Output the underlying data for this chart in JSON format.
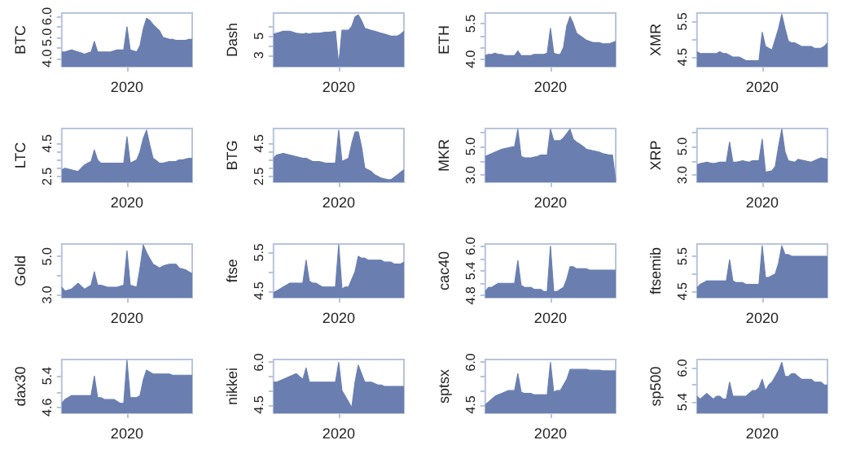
{
  "chart_data": [
    {
      "type": "area",
      "ylabel": "BTC",
      "color": "#6a7fb0",
      "categories": [
        null,
        null,
        null,
        null,
        null,
        null,
        null,
        null,
        null,
        null,
        null,
        null,
        null,
        null,
        null,
        null,
        null,
        null,
        null,
        null,
        "2020",
        null,
        null,
        null,
        null,
        null,
        null,
        null,
        null,
        null,
        null,
        null,
        null,
        null,
        null,
        null,
        null,
        null,
        null,
        null,
        null
      ],
      "ylim": [
        3.6,
        6.15
      ],
      "yticks": [
        {
          "value": 4.0,
          "label": "4.0"
        },
        {
          "value": 4.5,
          "label": null
        },
        {
          "value": 5.0,
          "label": "5.0"
        },
        {
          "value": 5.5,
          "label": null
        },
        {
          "value": 6.0,
          "label": "6.0"
        }
      ],
      "values": [
        4.3,
        4.3,
        4.35,
        4.4,
        4.35,
        4.3,
        4.25,
        4.2,
        4.25,
        4.3,
        4.8,
        4.3,
        4.3,
        4.3,
        4.3,
        4.3,
        4.35,
        4.4,
        4.4,
        4.4,
        5.5,
        4.4,
        4.35,
        4.3,
        4.6,
        5.4,
        5.9,
        5.8,
        5.6,
        5.45,
        5.3,
        5.0,
        4.95,
        4.9,
        4.9,
        4.85,
        4.85,
        4.85,
        4.85,
        4.9,
        4.9
      ]
    },
    {
      "type": "area",
      "ylabel": "Dash",
      "color": "#6a7fb0",
      "categories": [
        null,
        null,
        null,
        null,
        null,
        null,
        null,
        null,
        null,
        null,
        null,
        null,
        null,
        null,
        null,
        null,
        null,
        null,
        null,
        null,
        "2020",
        null,
        null,
        null,
        null,
        null,
        null,
        null,
        null,
        null,
        null,
        null,
        null,
        null,
        null,
        null,
        null,
        null,
        null,
        null,
        null
      ],
      "ylim": [
        1.8,
        7.4
      ],
      "yticks": [
        {
          "value": 3,
          "label": "3"
        },
        {
          "value": 4,
          "label": null
        },
        {
          "value": 5,
          "label": "5"
        },
        {
          "value": 6,
          "label": null
        }
      ],
      "values": [
        5.2,
        5.3,
        5.4,
        5.5,
        5.5,
        5.5,
        5.4,
        5.3,
        5.25,
        5.2,
        5.3,
        5.2,
        5.3,
        5.3,
        5.3,
        5.35,
        5.4,
        5.4,
        5.45,
        5.5,
        2.0,
        5.6,
        5.6,
        5.6,
        6.0,
        7.0,
        7.2,
        6.6,
        5.8,
        5.7,
        5.6,
        5.5,
        5.4,
        5.3,
        5.2,
        5.1,
        5.0,
        5.0,
        5.0,
        5.2,
        5.5
      ]
    },
    {
      "type": "area",
      "ylabel": "ETH",
      "color": "#6a7fb0",
      "categories": [
        null,
        null,
        null,
        null,
        null,
        null,
        null,
        null,
        null,
        null,
        null,
        null,
        null,
        null,
        null,
        null,
        null,
        null,
        null,
        null,
        "2020",
        null,
        null,
        null,
        null,
        null,
        null,
        null,
        null,
        null,
        null,
        null,
        null,
        null,
        null,
        null,
        null,
        null,
        null,
        null,
        null
      ],
      "ylim": [
        3.68,
        5.95
      ],
      "yticks": [
        {
          "value": 4.0,
          "label": "4.0"
        },
        {
          "value": 4.5,
          "label": null
        },
        {
          "value": 5.0,
          "label": null
        },
        {
          "value": 5.5,
          "label": "5.5"
        }
      ],
      "values": [
        4.15,
        4.2,
        4.2,
        4.25,
        4.2,
        4.2,
        4.15,
        4.15,
        4.15,
        4.15,
        4.35,
        4.15,
        4.15,
        4.15,
        4.15,
        4.2,
        4.2,
        4.2,
        4.2,
        4.25,
        5.3,
        4.25,
        4.2,
        4.2,
        4.5,
        5.4,
        5.8,
        5.5,
        5.1,
        5.0,
        4.9,
        4.8,
        4.75,
        4.7,
        4.7,
        4.7,
        4.65,
        4.65,
        4.65,
        4.7,
        4.75
      ]
    },
    {
      "type": "area",
      "ylabel": "XMR",
      "color": "#6a7fb0",
      "categories": [
        null,
        null,
        null,
        null,
        null,
        null,
        null,
        null,
        null,
        null,
        null,
        null,
        null,
        null,
        null,
        null,
        null,
        null,
        null,
        null,
        "2020",
        null,
        null,
        null,
        null,
        null,
        null,
        null,
        null,
        null,
        null,
        null,
        null,
        null,
        null,
        null,
        null,
        null,
        null,
        null,
        null
      ],
      "ylim": [
        4.23,
        5.74
      ],
      "yticks": [
        {
          "value": 4.5,
          "label": "4.5"
        },
        {
          "value": 5.0,
          "label": null
        },
        {
          "value": 5.5,
          "label": "5.5"
        }
      ],
      "values": [
        4.65,
        4.6,
        4.6,
        4.6,
        4.6,
        4.6,
        4.6,
        4.65,
        4.6,
        4.6,
        4.55,
        4.5,
        4.5,
        4.5,
        4.45,
        4.4,
        4.4,
        4.4,
        4.4,
        4.4,
        5.2,
        4.8,
        4.75,
        4.7,
        5.0,
        5.3,
        5.7,
        5.3,
        4.95,
        4.9,
        4.9,
        4.85,
        4.8,
        4.8,
        4.8,
        4.8,
        4.75,
        4.75,
        4.75,
        4.8,
        4.9
      ]
    },
    {
      "type": "area",
      "ylabel": "LTC",
      "color": "#6a7fb0",
      "categories": [
        null,
        null,
        null,
        null,
        null,
        null,
        null,
        null,
        null,
        null,
        null,
        null,
        null,
        null,
        null,
        null,
        null,
        null,
        null,
        null,
        "2020",
        null,
        null,
        null,
        null,
        null,
        null,
        null,
        null,
        null,
        null,
        null,
        null,
        null,
        null,
        null,
        null,
        null,
        null,
        null,
        null
      ],
      "ylim": [
        2.15,
        5.4
      ],
      "yticks": [
        {
          "value": 2.5,
          "label": "2.5"
        },
        {
          "value": 3.0,
          "label": null
        },
        {
          "value": 3.5,
          "label": null
        },
        {
          "value": 4.0,
          "label": null
        },
        {
          "value": 4.5,
          "label": "4.5"
        }
      ],
      "values": [
        2.9,
        3.0,
        2.95,
        2.9,
        2.85,
        2.8,
        3.0,
        3.2,
        3.3,
        3.4,
        4.1,
        3.5,
        3.3,
        3.3,
        3.3,
        3.3,
        3.3,
        3.3,
        3.3,
        3.3,
        4.9,
        3.3,
        3.4,
        3.5,
        4.0,
        4.8,
        5.3,
        4.4,
        3.6,
        3.45,
        3.3,
        3.3,
        3.35,
        3.4,
        3.4,
        3.4,
        3.5,
        3.5,
        3.55,
        3.6,
        3.6
      ]
    },
    {
      "type": "area",
      "ylabel": "BTG",
      "color": "#6a7fb0",
      "categories": [
        null,
        null,
        null,
        null,
        null,
        null,
        null,
        null,
        null,
        null,
        null,
        null,
        null,
        null,
        null,
        null,
        null,
        null,
        null,
        null,
        "2020",
        null,
        null,
        null,
        null,
        null,
        null,
        null,
        null,
        null,
        null,
        null,
        null,
        null,
        null,
        null,
        null,
        null,
        null,
        null,
        null
      ],
      "ylim": [
        2.15,
        5.4
      ],
      "yticks": [
        {
          "value": 2.5,
          "label": "2.5"
        },
        {
          "value": 3.0,
          "label": null
        },
        {
          "value": 3.5,
          "label": null
        },
        {
          "value": 4.0,
          "label": null
        },
        {
          "value": 4.5,
          "label": "4.5"
        }
      ],
      "values": [
        3.6,
        3.8,
        3.85,
        3.9,
        3.85,
        3.8,
        3.75,
        3.7,
        3.65,
        3.6,
        3.6,
        3.5,
        3.4,
        3.4,
        3.4,
        3.35,
        3.3,
        3.3,
        3.3,
        3.3,
        5.3,
        3.4,
        3.5,
        3.6,
        4.5,
        5.2,
        5.2,
        4.3,
        3.0,
        2.9,
        2.8,
        2.6,
        2.5,
        2.4,
        2.35,
        2.3,
        2.3,
        2.45,
        2.6,
        2.75,
        2.9
      ]
    },
    {
      "type": "area",
      "ylabel": "MKR",
      "color": "#6a7fb0",
      "categories": [
        null,
        null,
        null,
        null,
        null,
        null,
        null,
        null,
        null,
        null,
        null,
        null,
        null,
        null,
        null,
        null,
        null,
        null,
        null,
        null,
        "2020",
        null,
        null,
        null,
        null,
        null,
        null,
        null,
        null,
        null,
        null,
        null,
        null,
        null,
        null,
        null,
        null,
        null,
        null,
        null,
        null
      ],
      "ylim": [
        2.5,
        6.25
      ],
      "yticks": [
        {
          "value": 3.0,
          "label": "3.0"
        },
        {
          "value": 4.0,
          "label": null
        },
        {
          "value": 5.0,
          "label": "5.0"
        },
        {
          "value": 6.0,
          "label": null
        }
      ],
      "values": [
        4.3,
        4.4,
        4.5,
        4.6,
        4.7,
        4.8,
        4.85,
        4.9,
        4.95,
        5.0,
        6.2,
        4.3,
        4.2,
        4.2,
        4.2,
        4.25,
        4.3,
        4.4,
        4.4,
        4.4,
        6.2,
        5.4,
        5.4,
        5.4,
        5.6,
        5.9,
        6.2,
        5.5,
        5.3,
        5.15,
        5.0,
        4.8,
        4.75,
        4.7,
        4.65,
        4.6,
        4.5,
        4.45,
        4.4,
        4.4,
        2.6
      ]
    },
    {
      "type": "area",
      "ylabel": "XRP",
      "color": "#6a7fb0",
      "categories": [
        null,
        null,
        null,
        null,
        null,
        null,
        null,
        null,
        null,
        null,
        null,
        null,
        null,
        null,
        null,
        null,
        null,
        null,
        null,
        null,
        "2020",
        null,
        null,
        null,
        null,
        null,
        null,
        null,
        null,
        null,
        null,
        null,
        null,
        null,
        null,
        null,
        null,
        null,
        null,
        null,
        null
      ],
      "ylim": [
        2.5,
        6.25
      ],
      "yticks": [
        {
          "value": 3.0,
          "label": "3.0"
        },
        {
          "value": 4.0,
          "label": null
        },
        {
          "value": 5.0,
          "label": "5.0"
        },
        {
          "value": 6.0,
          "label": null
        }
      ],
      "values": [
        3.7,
        3.8,
        3.85,
        3.9,
        3.85,
        3.8,
        3.85,
        3.9,
        3.9,
        3.9,
        5.3,
        3.9,
        3.9,
        3.95,
        4.0,
        3.95,
        3.9,
        4.0,
        4.0,
        4.0,
        5.5,
        3.2,
        3.25,
        3.3,
        3.6,
        5.0,
        6.2,
        4.6,
        4.0,
        3.95,
        3.9,
        4.1,
        4.05,
        4.0,
        3.95,
        3.9,
        4.0,
        4.1,
        4.2,
        4.15,
        4.1
      ]
    },
    {
      "type": "area",
      "ylabel": "Gold",
      "color": "#6a7fb0",
      "categories": [
        null,
        null,
        null,
        null,
        null,
        null,
        null,
        null,
        null,
        null,
        null,
        null,
        null,
        null,
        null,
        null,
        null,
        null,
        null,
        null,
        "2020",
        null,
        null,
        null,
        null,
        null,
        null,
        null,
        null,
        null,
        null,
        null,
        null,
        null,
        null,
        null,
        null,
        null,
        null,
        null,
        null
      ],
      "ylim": [
        2.85,
        5.65
      ],
      "yticks": [
        {
          "value": 3.0,
          "label": "3.0"
        },
        {
          "value": 4.0,
          "label": null
        },
        {
          "value": 5.0,
          "label": "5.0"
        }
      ],
      "values": [
        3.4,
        3.2,
        3.25,
        3.3,
        3.45,
        3.6,
        3.45,
        3.3,
        3.4,
        3.5,
        4.2,
        3.5,
        3.5,
        3.45,
        3.4,
        3.4,
        3.4,
        3.4,
        3.45,
        3.5,
        5.3,
        3.5,
        3.45,
        3.4,
        4.4,
        5.6,
        5.2,
        4.9,
        4.6,
        4.5,
        4.4,
        4.5,
        4.55,
        4.6,
        4.6,
        4.6,
        4.4,
        4.35,
        4.3,
        4.2,
        4.1
      ]
    },
    {
      "type": "area",
      "ylabel": "ftse",
      "color": "#6a7fb0",
      "categories": [
        null,
        null,
        null,
        null,
        null,
        null,
        null,
        null,
        null,
        null,
        null,
        null,
        null,
        null,
        null,
        null,
        null,
        null,
        null,
        null,
        "2020",
        null,
        null,
        null,
        null,
        null,
        null,
        null,
        null,
        null,
        null,
        null,
        null,
        null,
        null,
        null,
        null,
        null,
        null,
        null,
        null
      ],
      "ylim": [
        4.32,
        5.72
      ],
      "yticks": [
        {
          "value": 4.5,
          "label": "4.5"
        },
        {
          "value": 5.0,
          "label": null
        },
        {
          "value": 5.5,
          "label": "5.5"
        }
      ],
      "values": [
        4.45,
        4.5,
        4.55,
        4.6,
        4.65,
        4.7,
        4.7,
        4.7,
        4.7,
        4.7,
        5.3,
        4.75,
        4.7,
        4.7,
        4.65,
        4.6,
        4.6,
        4.6,
        4.6,
        4.6,
        5.7,
        4.55,
        4.6,
        4.6,
        4.8,
        5.0,
        5.4,
        5.35,
        5.35,
        5.3,
        5.3,
        5.3,
        5.3,
        5.3,
        5.25,
        5.25,
        5.25,
        5.2,
        5.2,
        5.2,
        5.25
      ]
    },
    {
      "type": "area",
      "ylabel": "cac40",
      "color": "#6a7fb0",
      "categories": [
        null,
        null,
        null,
        null,
        null,
        null,
        null,
        null,
        null,
        null,
        null,
        null,
        null,
        null,
        null,
        null,
        null,
        null,
        null,
        null,
        "2020",
        null,
        null,
        null,
        null,
        null,
        null,
        null,
        null,
        null,
        null,
        null,
        null,
        null,
        null,
        null,
        null,
        null,
        null,
        null,
        null
      ],
      "ylim": [
        4.75,
        6.05
      ],
      "yticks": [
        {
          "value": 4.8,
          "label": "4.8"
        },
        {
          "value": 5.1,
          "label": null
        },
        {
          "value": 5.4,
          "label": "5.4"
        },
        {
          "value": 5.7,
          "label": null
        },
        {
          "value": 6.0,
          "label": "6.0"
        }
      ],
      "values": [
        4.9,
        5.0,
        5.0,
        5.05,
        5.1,
        5.1,
        5.1,
        5.1,
        5.1,
        5.1,
        5.65,
        5.05,
        5.0,
        5.0,
        5.0,
        4.95,
        4.95,
        4.95,
        4.9,
        4.9,
        6.0,
        4.9,
        4.9,
        4.95,
        5.0,
        5.2,
        5.5,
        5.5,
        5.45,
        5.45,
        5.45,
        5.45,
        5.42,
        5.42,
        5.42,
        5.42,
        5.42,
        5.42,
        5.42,
        5.42,
        5.42
      ]
    },
    {
      "type": "area",
      "ylabel": "ftsemib",
      "color": "#6a7fb0",
      "categories": [
        null,
        null,
        null,
        null,
        null,
        null,
        null,
        null,
        null,
        null,
        null,
        null,
        null,
        null,
        null,
        null,
        null,
        null,
        null,
        null,
        "2020",
        null,
        null,
        null,
        null,
        null,
        null,
        null,
        null,
        null,
        null,
        null,
        null,
        null,
        null,
        null,
        null,
        null,
        null,
        null,
        null
      ],
      "ylim": [
        4.32,
        5.85
      ],
      "yticks": [
        {
          "value": 4.5,
          "label": "4.5"
        },
        {
          "value": 5.0,
          "label": null
        },
        {
          "value": 5.5,
          "label": "5.5"
        }
      ],
      "values": [
        4.6,
        4.7,
        4.75,
        4.8,
        4.8,
        4.8,
        4.8,
        4.8,
        4.8,
        4.8,
        5.4,
        4.8,
        4.75,
        4.75,
        4.75,
        4.7,
        4.7,
        4.7,
        4.7,
        4.7,
        5.8,
        4.9,
        4.9,
        4.95,
        5.0,
        5.3,
        5.8,
        5.55,
        5.55,
        5.5,
        5.5,
        5.5,
        5.5,
        5.5,
        5.5,
        5.5,
        5.5,
        5.5,
        5.5,
        5.5,
        5.5
      ]
    },
    {
      "type": "area",
      "ylabel": "dax30",
      "color": "#6a7fb0",
      "categories": [
        null,
        null,
        null,
        null,
        null,
        null,
        null,
        null,
        null,
        null,
        null,
        null,
        null,
        null,
        null,
        null,
        null,
        null,
        null,
        null,
        "2020",
        null,
        null,
        null,
        null,
        null,
        null,
        null,
        null,
        null,
        null,
        null,
        null,
        null,
        null,
        null,
        null,
        null,
        null,
        null,
        null
      ],
      "ylim": [
        4.45,
        5.82
      ],
      "yticks": [
        {
          "value": 4.6,
          "label": "4.6"
        },
        {
          "value": 5.0,
          "label": null
        },
        {
          "value": 5.4,
          "label": "5.4"
        }
      ],
      "values": [
        4.7,
        4.8,
        4.85,
        4.9,
        4.9,
        4.9,
        4.9,
        4.9,
        4.9,
        4.9,
        5.4,
        4.85,
        4.85,
        4.8,
        4.8,
        4.8,
        4.8,
        4.75,
        4.7,
        4.7,
        5.8,
        4.85,
        4.85,
        4.85,
        4.9,
        5.3,
        5.55,
        5.5,
        5.45,
        5.45,
        5.45,
        5.45,
        5.45,
        5.45,
        5.42,
        5.42,
        5.42,
        5.42,
        5.42,
        5.42,
        5.42
      ]
    },
    {
      "type": "area",
      "ylabel": "nikkei",
      "color": "#6a7fb0",
      "categories": [
        null,
        null,
        null,
        null,
        null,
        null,
        null,
        null,
        null,
        null,
        null,
        null,
        null,
        null,
        null,
        null,
        null,
        null,
        null,
        null,
        "2020",
        null,
        null,
        null,
        null,
        null,
        null,
        null,
        null,
        null,
        null,
        null,
        null,
        null,
        null,
        null,
        null,
        null,
        null,
        null,
        null
      ],
      "ylim": [
        4.2,
        6.1
      ],
      "yticks": [
        {
          "value": 4.5,
          "label": "4.5"
        },
        {
          "value": 5.0,
          "label": null
        },
        {
          "value": 5.5,
          "label": null
        },
        {
          "value": 6.0,
          "label": "6.0"
        }
      ],
      "values": [
        5.3,
        5.3,
        5.35,
        5.4,
        5.45,
        5.5,
        5.55,
        5.6,
        5.5,
        5.4,
        5.8,
        5.3,
        5.3,
        5.3,
        5.3,
        5.3,
        5.3,
        5.3,
        5.3,
        5.3,
        6.0,
        5.0,
        4.8,
        4.6,
        4.4,
        5.3,
        5.9,
        5.6,
        5.3,
        5.3,
        5.3,
        5.25,
        5.2,
        5.2,
        5.15,
        5.15,
        5.15,
        5.15,
        5.15,
        5.15,
        5.15
      ]
    },
    {
      "type": "area",
      "ylabel": "sptsx",
      "color": "#6a7fb0",
      "categories": [
        null,
        null,
        null,
        null,
        null,
        null,
        null,
        null,
        null,
        null,
        null,
        null,
        null,
        null,
        null,
        null,
        null,
        null,
        null,
        null,
        "2020",
        null,
        null,
        null,
        null,
        null,
        null,
        null,
        null,
        null,
        null,
        null,
        null,
        null,
        null,
        null,
        null,
        null,
        null,
        null,
        null
      ],
      "ylim": [
        4.2,
        6.1
      ],
      "yticks": [
        {
          "value": 4.5,
          "label": "4.5"
        },
        {
          "value": 5.0,
          "label": null
        },
        {
          "value": 5.5,
          "label": null
        },
        {
          "value": 6.0,
          "label": "6.0"
        }
      ],
      "values": [
        4.5,
        4.6,
        4.7,
        4.8,
        4.85,
        4.9,
        4.95,
        5.0,
        5.0,
        5.0,
        5.6,
        4.95,
        4.9,
        4.9,
        4.9,
        4.85,
        4.85,
        4.85,
        4.85,
        4.85,
        6.0,
        4.95,
        5.0,
        5.0,
        5.2,
        5.4,
        5.75,
        5.75,
        5.75,
        5.75,
        5.75,
        5.75,
        5.72,
        5.72,
        5.72,
        5.72,
        5.7,
        5.7,
        5.7,
        5.7,
        5.7
      ]
    },
    {
      "type": "area",
      "ylabel": "sp500",
      "color": "#6a7fb0",
      "categories": [
        null,
        null,
        null,
        null,
        null,
        null,
        null,
        null,
        null,
        null,
        null,
        null,
        null,
        null,
        null,
        null,
        null,
        null,
        null,
        null,
        "2020",
        null,
        null,
        null,
        null,
        null,
        null,
        null,
        null,
        null,
        null,
        null,
        null,
        null,
        null,
        null,
        null,
        null,
        null,
        null,
        null
      ],
      "ylim": [
        5.2,
        6.15
      ],
      "yticks": [
        {
          "value": 5.4,
          "label": "5.4"
        },
        {
          "value": 5.7,
          "label": null
        },
        {
          "value": 6.0,
          "label": "6.0"
        }
      ],
      "values": [
        5.5,
        5.45,
        5.5,
        5.55,
        5.5,
        5.45,
        5.5,
        5.5,
        5.45,
        5.45,
        5.75,
        5.5,
        5.5,
        5.5,
        5.5,
        5.5,
        5.55,
        5.6,
        5.6,
        5.65,
        5.8,
        5.6,
        5.7,
        5.75,
        5.85,
        5.95,
        6.1,
        5.85,
        5.85,
        5.9,
        5.9,
        5.85,
        5.8,
        5.8,
        5.8,
        5.8,
        5.75,
        5.75,
        5.75,
        5.7,
        5.7
      ]
    }
  ]
}
